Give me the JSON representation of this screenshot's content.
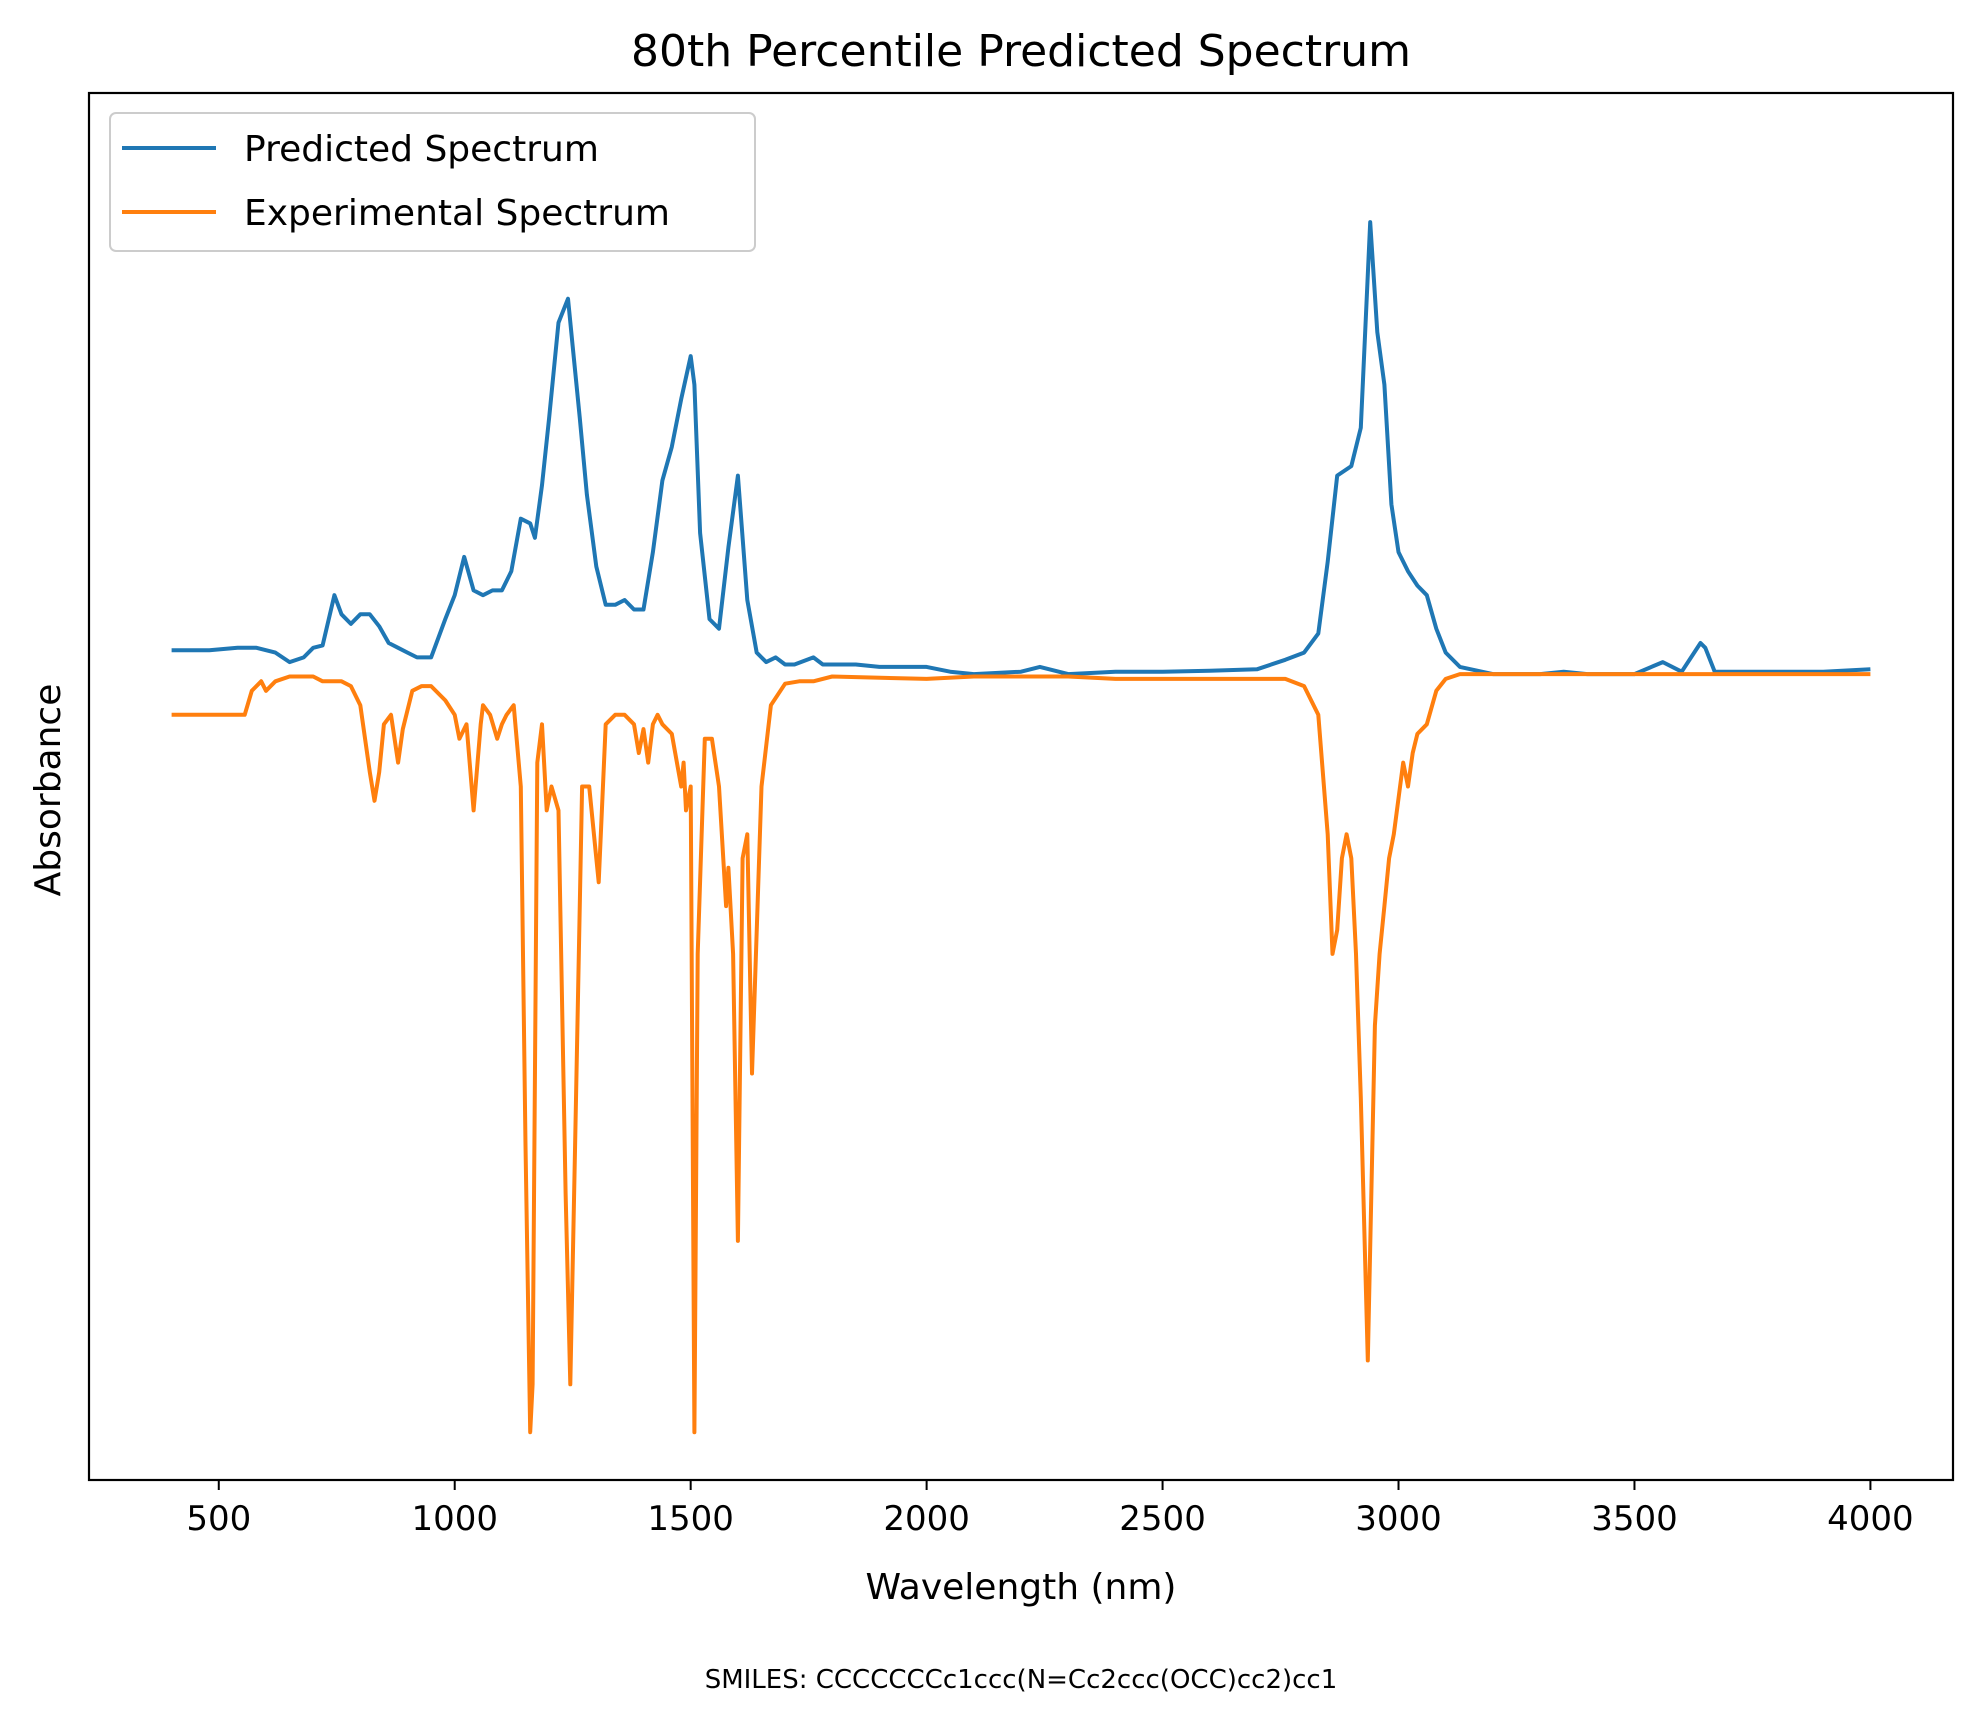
{
  "chart_data": {
    "type": "line",
    "title": "80th Percentile Predicted Spectrum",
    "xlabel": "Wavelength (nm)",
    "ylabel": "Absorbance",
    "xlim": [
      225,
      4175
    ],
    "ylim": [
      -1.7,
      1.2
    ],
    "xticks": [
      500,
      1000,
      1500,
      2000,
      2500,
      3000,
      3500,
      4000
    ],
    "yticks_shown": false,
    "grid": false,
    "legend_position": "top-left",
    "series": [
      {
        "name": "Predicted Spectrum",
        "color": "#1f77b4",
        "x": [
          400,
          480,
          540,
          580,
          620,
          650,
          680,
          700,
          720,
          745,
          760,
          780,
          800,
          820,
          840,
          860,
          880,
          900,
          920,
          950,
          980,
          1000,
          1020,
          1040,
          1060,
          1080,
          1100,
          1120,
          1140,
          1160,
          1170,
          1185,
          1200,
          1220,
          1240,
          1250,
          1265,
          1280,
          1300,
          1320,
          1340,
          1360,
          1380,
          1400,
          1420,
          1440,
          1460,
          1480,
          1500,
          1508,
          1520,
          1540,
          1560,
          1580,
          1600,
          1620,
          1640,
          1660,
          1680,
          1700,
          1720,
          1760,
          1780,
          1850,
          1900,
          2000,
          2050,
          2100,
          2200,
          2240,
          2300,
          2400,
          2500,
          2600,
          2700,
          2760,
          2800,
          2830,
          2850,
          2870,
          2900,
          2920,
          2940,
          2955,
          2970,
          2985,
          3000,
          3020,
          3040,
          3060,
          3080,
          3100,
          3130,
          3200,
          3300,
          3350,
          3400,
          3500,
          3560,
          3600,
          3640,
          3650,
          3670,
          3700,
          3800,
          3900,
          4000
        ],
        "values": [
          0.035,
          0.035,
          0.04,
          0.04,
          0.03,
          0.01,
          0.02,
          0.04,
          0.045,
          0.15,
          0.11,
          0.09,
          0.11,
          0.11,
          0.085,
          0.05,
          0.04,
          0.03,
          0.02,
          0.02,
          0.1,
          0.15,
          0.23,
          0.16,
          0.15,
          0.16,
          0.16,
          0.2,
          0.31,
          0.3,
          0.27,
          0.38,
          0.52,
          0.72,
          0.77,
          0.67,
          0.52,
          0.36,
          0.21,
          0.13,
          0.13,
          0.14,
          0.12,
          0.12,
          0.24,
          0.39,
          0.46,
          0.56,
          0.65,
          0.59,
          0.28,
          0.1,
          0.08,
          0.25,
          0.4,
          0.14,
          0.03,
          0.01,
          0.02,
          0.005,
          0.005,
          0.02,
          0.005,
          0.005,
          0.0,
          0.0,
          -0.01,
          -0.015,
          -0.01,
          0.0,
          -0.015,
          -0.01,
          -0.01,
          -0.008,
          -0.005,
          0.015,
          0.03,
          0.07,
          0.22,
          0.4,
          0.42,
          0.5,
          0.93,
          0.7,
          0.59,
          0.34,
          0.24,
          0.2,
          0.17,
          0.15,
          0.08,
          0.03,
          0.0,
          -0.015,
          -0.015,
          -0.01,
          -0.015,
          -0.015,
          0.01,
          -0.01,
          0.05,
          0.04,
          -0.01,
          -0.01,
          -0.01,
          -0.01,
          -0.005
        ]
      },
      {
        "name": "Experimental Spectrum",
        "color": "#ff7f0e",
        "x": [
          400,
          540,
          555,
          570,
          590,
          600,
          620,
          650,
          680,
          700,
          720,
          760,
          780,
          800,
          820,
          830,
          840,
          850,
          865,
          880,
          890,
          910,
          930,
          950,
          980,
          1000,
          1010,
          1025,
          1040,
          1055,
          1060,
          1075,
          1090,
          1100,
          1110,
          1125,
          1140,
          1150,
          1160,
          1165,
          1175,
          1185,
          1195,
          1205,
          1220,
          1235,
          1245,
          1255,
          1270,
          1285,
          1300,
          1305,
          1320,
          1340,
          1360,
          1380,
          1390,
          1400,
          1410,
          1420,
          1430,
          1440,
          1460,
          1480,
          1485,
          1490,
          1500,
          1508,
          1515,
          1530,
          1545,
          1560,
          1575,
          1580,
          1590,
          1600,
          1610,
          1620,
          1630,
          1650,
          1670,
          1700,
          1730,
          1760,
          1800,
          2000,
          2100,
          2200,
          2300,
          2400,
          2500,
          2600,
          2700,
          2760,
          2800,
          2830,
          2850,
          2860,
          2870,
          2880,
          2890,
          2900,
          2910,
          2920,
          2935,
          2950,
          2960,
          2970,
          2980,
          2990,
          3010,
          3020,
          3030,
          3040,
          3060,
          3080,
          3100,
          3130,
          3200,
          3300,
          3400,
          3500,
          3600,
          3700,
          3800,
          3900,
          4000
        ],
        "values": [
          -0.1,
          -0.1,
          -0.1,
          -0.05,
          -0.03,
          -0.05,
          -0.03,
          -0.02,
          -0.02,
          -0.02,
          -0.03,
          -0.03,
          -0.04,
          -0.08,
          -0.22,
          -0.28,
          -0.22,
          -0.12,
          -0.1,
          -0.2,
          -0.13,
          -0.05,
          -0.04,
          -0.04,
          -0.07,
          -0.1,
          -0.15,
          -0.12,
          -0.3,
          -0.12,
          -0.08,
          -0.1,
          -0.15,
          -0.12,
          -0.1,
          -0.08,
          -0.25,
          -1.0,
          -1.6,
          -1.5,
          -0.2,
          -0.12,
          -0.3,
          -0.25,
          -0.3,
          -1.1,
          -1.5,
          -1.0,
          -0.25,
          -0.25,
          -0.4,
          -0.45,
          -0.12,
          -0.1,
          -0.1,
          -0.12,
          -0.18,
          -0.13,
          -0.2,
          -0.12,
          -0.1,
          -0.12,
          -0.14,
          -0.25,
          -0.2,
          -0.3,
          -0.25,
          -1.6,
          -0.6,
          -0.15,
          -0.15,
          -0.25,
          -0.5,
          -0.42,
          -0.6,
          -1.2,
          -0.4,
          -0.35,
          -0.85,
          -0.25,
          -0.08,
          -0.035,
          -0.03,
          -0.03,
          -0.02,
          -0.025,
          -0.02,
          -0.02,
          -0.02,
          -0.025,
          -0.025,
          -0.025,
          -0.025,
          -0.025,
          -0.04,
          -0.1,
          -0.35,
          -0.6,
          -0.55,
          -0.4,
          -0.35,
          -0.4,
          -0.6,
          -0.9,
          -1.45,
          -0.75,
          -0.6,
          -0.5,
          -0.4,
          -0.35,
          -0.2,
          -0.25,
          -0.18,
          -0.14,
          -0.12,
          -0.05,
          -0.025,
          -0.015,
          -0.015,
          -0.015,
          -0.015,
          -0.015,
          -0.015,
          -0.015,
          -0.015,
          -0.015,
          -0.015
        ]
      }
    ]
  },
  "footer": {
    "smiles_text": "SMILES: CCCCCCCc1ccc(N=Cc2ccc(OCC)cc2)cc1"
  }
}
